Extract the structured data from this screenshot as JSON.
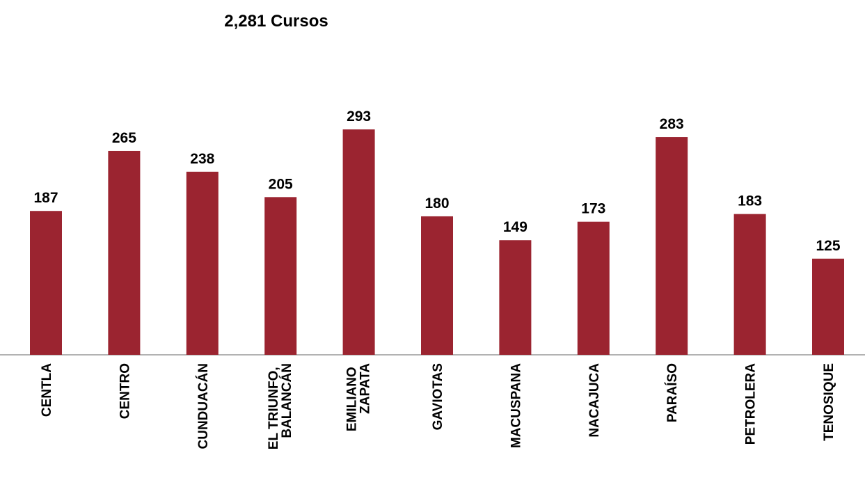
{
  "chart_data": {
    "type": "bar",
    "title": "2,281 Cursos",
    "categories": [
      "CENTLA",
      "CENTRO",
      "CUNDUACÁN",
      "EL TRIUNFO, BALANCÁN",
      "EMILIANO ZAPATA",
      "GAVIOTAS",
      "MACUSPANA",
      "NACAJUCA",
      "PARAÍSO",
      "PETROLERA",
      "TENOSIQUE"
    ],
    "values": [
      187,
      265,
      238,
      205,
      293,
      180,
      149,
      173,
      283,
      183,
      125
    ],
    "color": "#9b2430"
  }
}
